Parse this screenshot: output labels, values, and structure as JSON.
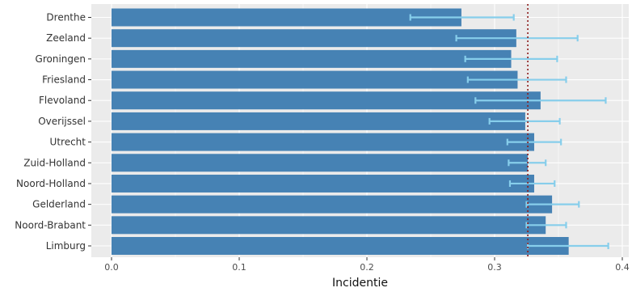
{
  "chart_data": {
    "type": "bar",
    "orientation": "horizontal",
    "title": "",
    "xlabel": "Incidentie",
    "ylabel": "",
    "xlim": [
      0,
      0.4
    ],
    "x_ticks": [
      "0.0",
      "0.1",
      "0.2",
      "0.3",
      "0.4"
    ],
    "grid": true,
    "legend": "none",
    "categories": [
      "Drenthe",
      "Zeeland",
      "Groningen",
      "Friesland",
      "Flevoland",
      "Overijssel",
      "Utrecht",
      "Zuid-Holland",
      "Noord-Holland",
      "Gelderland",
      "Noord-Brabant",
      "Limburg"
    ],
    "values": [
      0.274,
      0.317,
      0.313,
      0.318,
      0.336,
      0.324,
      0.331,
      0.326,
      0.331,
      0.345,
      0.34,
      0.358
    ],
    "error_low": [
      0.234,
      0.27,
      0.277,
      0.279,
      0.285,
      0.296,
      0.31,
      0.311,
      0.312,
      0.325,
      0.325,
      0.326
    ],
    "error_high": [
      0.315,
      0.365,
      0.349,
      0.356,
      0.387,
      0.351,
      0.352,
      0.34,
      0.347,
      0.366,
      0.356,
      0.389
    ],
    "reference_line": 0.326,
    "colors": {
      "bar": "#4682b4",
      "error_bar": "#87ceeb",
      "reference_line": "#8b1a1a",
      "panel_background": "#ebebeb",
      "grid": "#ffffff"
    }
  }
}
